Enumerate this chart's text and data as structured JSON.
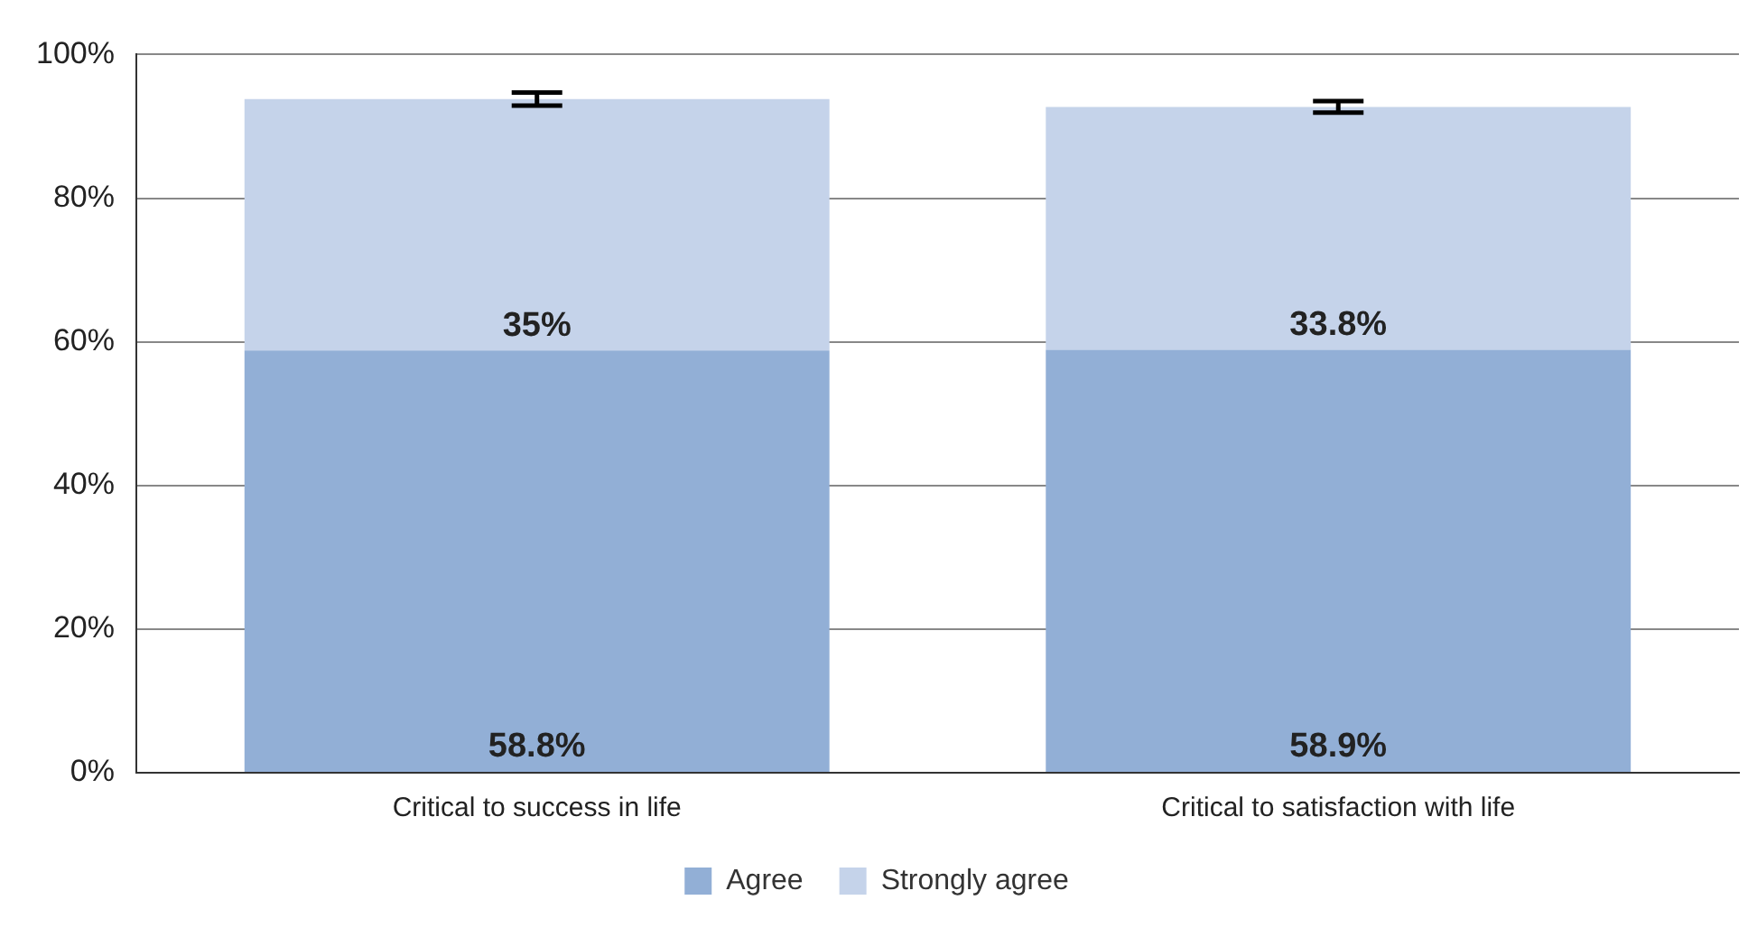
{
  "chart_data": {
    "type": "bar",
    "stacked": true,
    "categories": [
      "Critical to success in life",
      "Critical to satisfaction with life"
    ],
    "series": [
      {
        "name": "Agree",
        "color": "#92afd6",
        "values": [
          58.8,
          58.9
        ],
        "value_labels": [
          "58.8%",
          "58.9%"
        ]
      },
      {
        "name": "Strongly agree",
        "color": "#c5d3ea",
        "values": [
          35,
          33.8
        ],
        "value_labels": [
          "35%",
          "33.8%"
        ],
        "errors": [
          0.9,
          0.8
        ]
      }
    ],
    "ylim": [
      0,
      100
    ],
    "yticks": [
      {
        "value": 0,
        "label": "0%"
      },
      {
        "value": 20,
        "label": "20%"
      },
      {
        "value": 40,
        "label": "40%"
      },
      {
        "value": 60,
        "label": "60%"
      },
      {
        "value": 80,
        "label": "80%"
      },
      {
        "value": 100,
        "label": "100%"
      }
    ],
    "grid": "y",
    "legend": "bottom"
  }
}
